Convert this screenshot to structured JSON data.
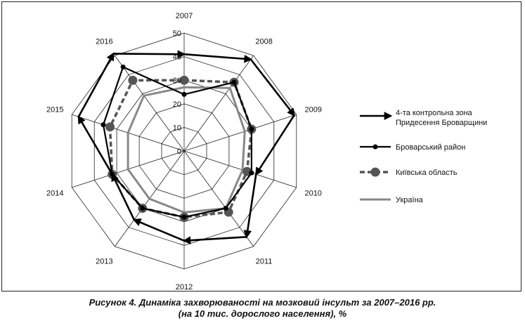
{
  "chart_data": {
    "type": "radar",
    "categories": [
      "2007",
      "2008",
      "2009",
      "2010",
      "2011",
      "2012",
      "2013",
      "2014",
      "2015",
      "2016"
    ],
    "r_ticks": [
      0,
      10,
      20,
      30,
      40,
      50
    ],
    "rlim": [
      0,
      50
    ],
    "series": [
      {
        "name": "4-та контрольна зона Придесення Броварщини",
        "values": [
          41,
          48,
          49,
          32,
          45,
          38,
          36,
          32,
          47,
          51
        ],
        "color": "#000000",
        "style": "arrow"
      },
      {
        "name": "Броварський район",
        "values": [
          24,
          36,
          30,
          30,
          30,
          28,
          30,
          32,
          36,
          44
        ],
        "color": "#000000",
        "style": "line-dot"
      },
      {
        "name": "Київська область",
        "values": [
          30,
          36,
          30,
          28,
          32,
          28,
          30,
          32,
          33,
          37
        ],
        "color": "#555555",
        "style": "dashed-big-dot"
      },
      {
        "name": "Україна",
        "values": [
          27,
          33,
          27,
          26,
          30,
          26,
          25,
          25,
          25,
          29
        ],
        "color": "#888888",
        "style": "solid"
      }
    ],
    "legend_position": "right"
  },
  "caption": {
    "line1": "Рисунок 4. Динаміка захворюваності на мозковий інсульт за 2007–2016 рр.",
    "line2": "(на 10 тис. дорослого населення), %"
  }
}
